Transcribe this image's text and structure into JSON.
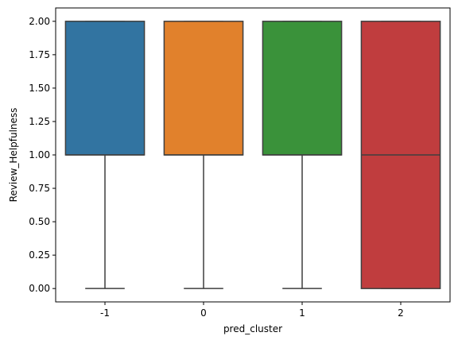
{
  "chart_data": {
    "type": "boxplot",
    "title": "",
    "xlabel": "pred_cluster",
    "ylabel": "Review_Helpfulness",
    "categories": [
      "-1",
      "0",
      "1",
      "2"
    ],
    "boxes": [
      {
        "category": "-1",
        "min": 0,
        "q1": 1,
        "median": 1,
        "q3": 2,
        "max": 2,
        "color": "#3274a1"
      },
      {
        "category": "0",
        "min": 0,
        "q1": 1,
        "median": 1,
        "q3": 2,
        "max": 2,
        "color": "#e1812c"
      },
      {
        "category": "1",
        "min": 0,
        "q1": 1,
        "median": 1,
        "q3": 2,
        "max": 2,
        "color": "#3a923a"
      },
      {
        "category": "2",
        "min": 0,
        "q1": 0,
        "median": 1,
        "q3": 2,
        "max": 2,
        "color": "#c03d3e"
      }
    ],
    "ylim": [
      -0.1,
      2.1
    ],
    "yticks": [
      0.0,
      0.25,
      0.5,
      0.75,
      1.0,
      1.25,
      1.5,
      1.75,
      2.0
    ],
    "ytick_labels": [
      "0.00",
      "0.25",
      "0.50",
      "0.75",
      "1.00",
      "1.25",
      "1.50",
      "1.75",
      "2.00"
    ],
    "grid": false,
    "line_color": "#3f3f3f"
  }
}
